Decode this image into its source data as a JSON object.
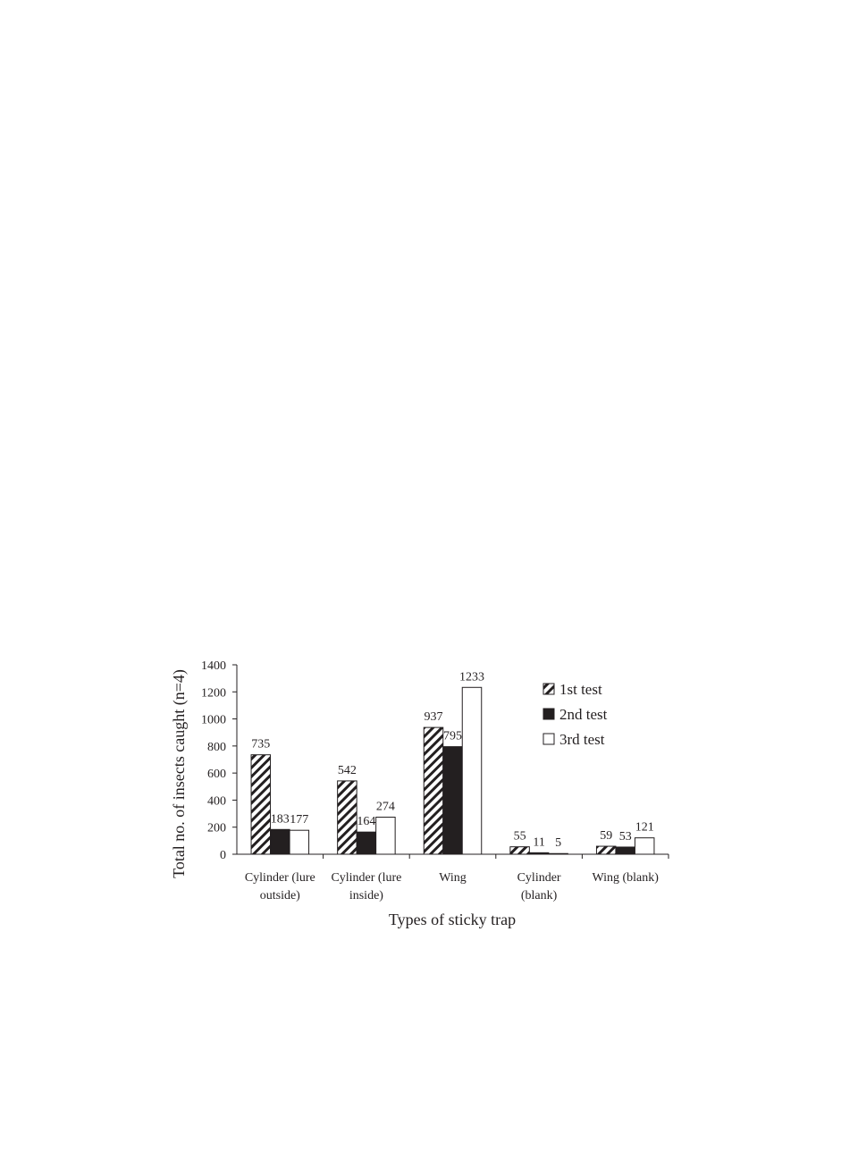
{
  "chart_data": {
    "type": "bar",
    "xlabel": "Types of sticky trap",
    "ylabel": "Total no. of insects caught (n=4)",
    "categories": [
      "Cylinder (lure\noutside)",
      "Cylinder (lure\ninside)",
      "Wing",
      "Cylinder\n(blank)",
      "Wing (blank)"
    ],
    "series": [
      {
        "name": "1st test",
        "color": "#231f20",
        "hatch": true,
        "values": [
          735,
          542,
          937,
          55,
          59
        ]
      },
      {
        "name": "2nd test",
        "color": "#231f20",
        "hatch": false,
        "values": [
          183,
          164,
          795,
          11,
          53
        ]
      },
      {
        "name": "3rd test",
        "color": "#ffffff",
        "hatch": false,
        "values": [
          177,
          274,
          1233,
          5,
          121
        ]
      }
    ],
    "ylim": [
      0,
      1400
    ],
    "yticks": [
      0,
      200,
      400,
      600,
      800,
      1000,
      1200,
      1400
    ],
    "legend": "upper right"
  }
}
